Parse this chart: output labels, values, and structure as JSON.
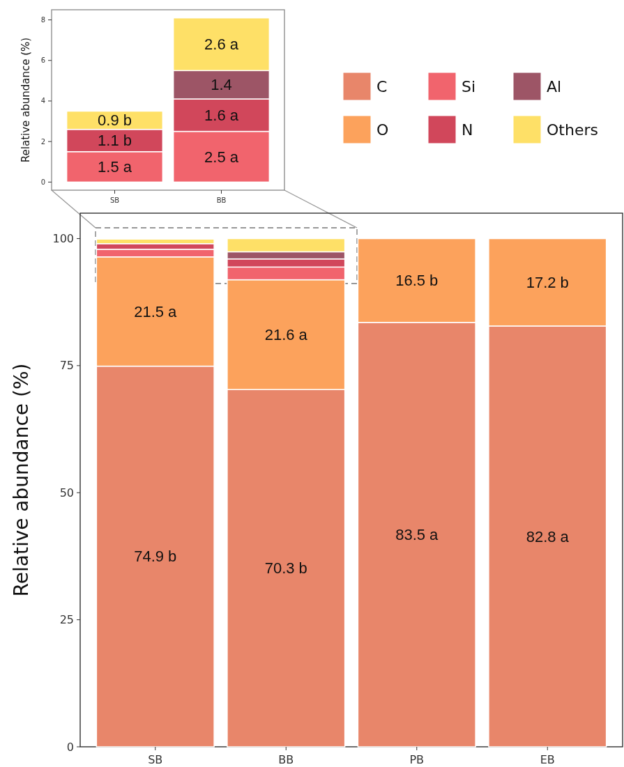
{
  "chart_data": [
    {
      "type": "bar",
      "stacked": true,
      "ylabel": "Relative abundance (%)",
      "categories": [
        "SB",
        "BB",
        "PB",
        "EB"
      ],
      "ylim": [
        0,
        105
      ],
      "yticks": [
        0,
        25,
        50,
        75,
        100
      ],
      "grid": false,
      "legend": "top right",
      "series": [
        {
          "name": "C",
          "color": "#e8866a",
          "values": [
            74.9,
            70.3,
            83.5,
            82.8
          ],
          "value_labels": [
            "74.9 b",
            "70.3 b",
            "83.5 a",
            "82.8 a"
          ]
        },
        {
          "name": "O",
          "color": "#fca25c",
          "values": [
            21.5,
            21.6,
            16.5,
            17.2
          ],
          "value_labels": [
            "21.5 a",
            "21.6 a",
            "16.5 b",
            "17.2 b"
          ]
        },
        {
          "name": "Si",
          "color": "#f1646d",
          "values": [
            1.5,
            2.5,
            null,
            null
          ]
        },
        {
          "name": "N",
          "color": "#d1475b",
          "values": [
            1.1,
            1.6,
            null,
            null
          ]
        },
        {
          "name": "Al",
          "color": "#9d5566",
          "values": [
            null,
            1.4,
            null,
            null
          ]
        },
        {
          "name": "Others",
          "color": "#fee067",
          "values": [
            0.9,
            2.6,
            null,
            null
          ]
        }
      ]
    },
    {
      "type": "bar",
      "stacked": true,
      "ylabel": "Relative abundance (%)",
      "categories": [
        "SB",
        "BB"
      ],
      "ylim": [
        -0.4,
        8.5
      ],
      "yticks": [
        0,
        2,
        4,
        6,
        8
      ],
      "grid": false,
      "series": [
        {
          "color": "#f1646d",
          "values": [
            1.5,
            2.5
          ],
          "value_labels": [
            "1.5 a",
            "2.5 a"
          ]
        },
        {
          "color": "#d1475b",
          "values": [
            1.1,
            1.6
          ],
          "value_labels": [
            "1.1 b",
            "1.6 a"
          ]
        },
        {
          "color": "#9d5566",
          "values": [
            null,
            1.4
          ],
          "value_labels": [
            null,
            "1.4"
          ]
        },
        {
          "color": "#fee067",
          "values": [
            0.9,
            2.6
          ],
          "value_labels": [
            "0.9 b",
            "2.6 a"
          ]
        }
      ]
    }
  ]
}
